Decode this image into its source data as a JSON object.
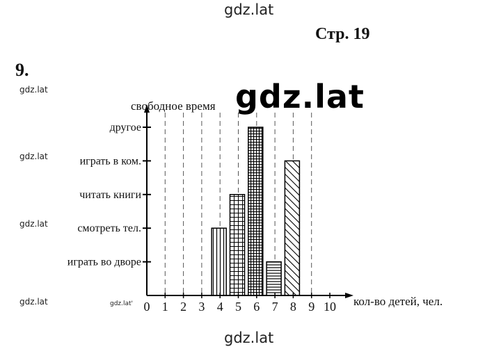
{
  "watermarks": {
    "top": "gdz.lat",
    "bottom": "gdz.lat",
    "big": "gdz.lat",
    "left1": "gdz.lat",
    "left2": "gdz.lat",
    "left3": "gdz.lat",
    "left4": "gdz.lat",
    "axis": "gdz.lat'"
  },
  "page_label": "Стр. 19",
  "task_number": "9.",
  "chart_data": {
    "type": "bar",
    "orientation": "vertical",
    "title": "",
    "xlabel": "кол-во детей, чел.",
    "ylabel": "свободное время",
    "x_ticks": [
      "0",
      "1",
      "2",
      "3",
      "4",
      "5",
      "6",
      "7",
      "8",
      "9",
      "10"
    ],
    "xlim": [
      0,
      10
    ],
    "grid": "vertical dashed",
    "categories": [
      "играть во дворе",
      "смотреть тел.",
      "читать книги",
      "играть в ком.",
      "другое"
    ],
    "bars": [
      {
        "x": 4,
        "value": 2,
        "pattern": "vertical"
      },
      {
        "x": 5,
        "value": 3,
        "pattern": "grid"
      },
      {
        "x": 6,
        "value": 5,
        "pattern": "dense-grid"
      },
      {
        "x": 7,
        "value": 1,
        "pattern": "horizontal"
      },
      {
        "x": 8,
        "value": 4,
        "pattern": "diagonal"
      }
    ]
  }
}
